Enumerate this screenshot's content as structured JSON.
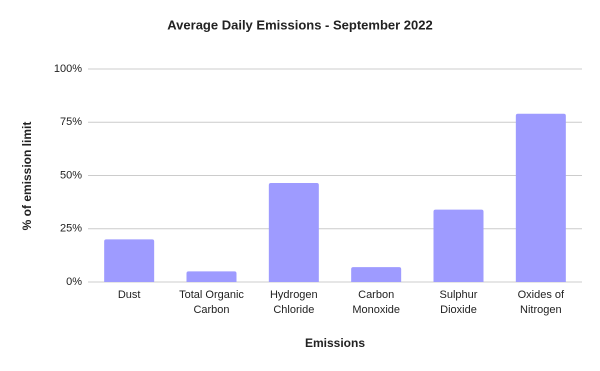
{
  "chart_data": {
    "type": "bar",
    "title": "Average Daily Emissions - September 2022",
    "x_label": "Emissions",
    "y_label": "% of emission limit",
    "categories": [
      "Dust",
      "Total Organic Carbon",
      "Hydrogen Chloride",
      "Carbon Monoxide",
      "Sulphur Dioxide",
      "Oxides of Nitrogen"
    ],
    "values": [
      20,
      5,
      46.5,
      7,
      34,
      79
    ],
    "color": "#9e9bff",
    "ylim": [
      0,
      100
    ],
    "yticks": [
      {
        "value": 0,
        "label": "0%"
      },
      {
        "value": 25,
        "label": "25%"
      },
      {
        "value": 50,
        "label": "50%"
      },
      {
        "value": 75,
        "label": "75%"
      },
      {
        "value": 100,
        "label": "100%"
      }
    ],
    "grid": true
  }
}
